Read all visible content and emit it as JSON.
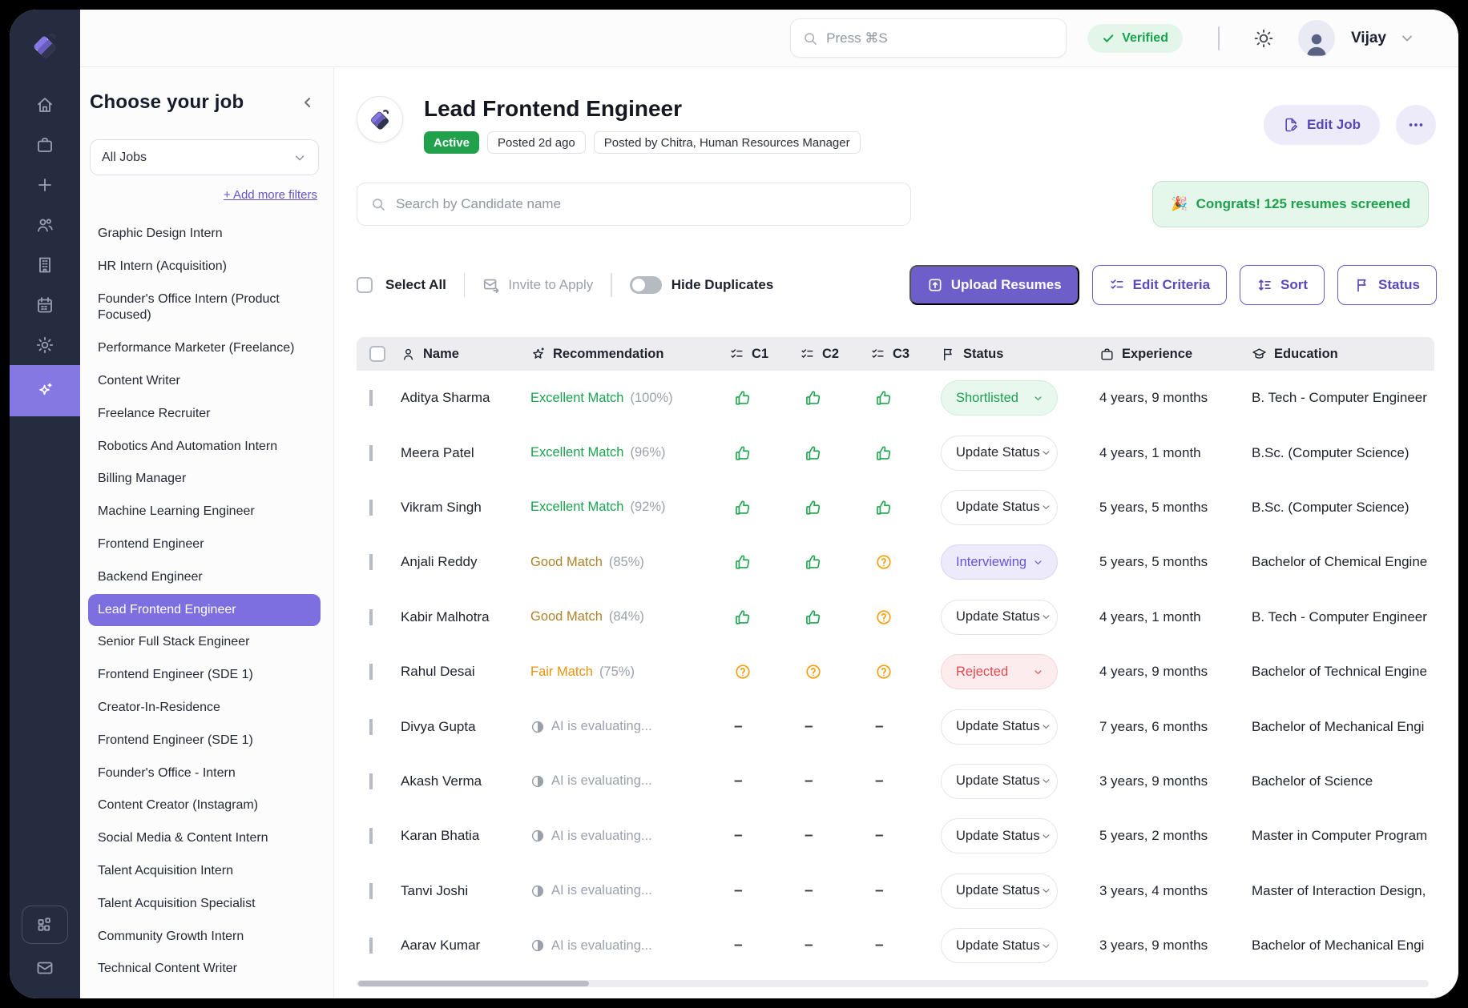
{
  "colors": {
    "accent_purple": "#6e5ec9",
    "active_rail_purple": "#8678e2",
    "selected_job_purple": "#7e6fe0",
    "success_green": "#18a24d",
    "good_amber": "#ab8428",
    "fair_orange": "#e8930c",
    "danger_red": "#e5484d",
    "info_purple": "#6455d6"
  },
  "rail": {
    "items": [
      {
        "icon": "home"
      },
      {
        "icon": "briefcase"
      },
      {
        "icon": "plus"
      },
      {
        "icon": "users"
      },
      {
        "icon": "building"
      },
      {
        "icon": "calendar"
      },
      {
        "icon": "gear"
      },
      {
        "icon": "sparkles",
        "active": true
      }
    ],
    "bottom": [
      {
        "icon": "apps",
        "framed": true
      },
      {
        "icon": "mail"
      }
    ]
  },
  "topbar": {
    "search_placeholder": "Press ⌘S",
    "verified_label": "Verified",
    "user_name": "Vijay"
  },
  "sidebar": {
    "title": "Choose your job",
    "filter_value": "All Jobs",
    "add_filters_label": "+ Add more filters",
    "selected_job": "Lead Frontend Engineer",
    "jobs": [
      "Graphic Design Intern",
      "HR Intern (Acquisition)",
      "Founder's Office Intern (Product Focused)",
      "Performance Marketer (Freelance)",
      "Content Writer",
      "Freelance Recruiter",
      "Robotics And Automation Intern",
      "Billing Manager",
      "Machine Learning Engineer",
      "Frontend Engineer",
      "Backend Engineer",
      "Lead Frontend Engineer",
      "Senior Full Stack Engineer",
      "Frontend Engineer (SDE 1)",
      "Creator-In-Residence",
      "Frontend Engineer (SDE 1)",
      "Founder's Office - Intern",
      "Content Creator (Instagram)",
      "Social Media & Content Intern",
      "Talent Acquisition Intern",
      "Talent Acquisition Specialist",
      "Community Growth Intern",
      "Technical Content Writer"
    ]
  },
  "job_header": {
    "title": "Lead Frontend Engineer",
    "status_badge": "Active",
    "posted_badge": "Posted 2d ago",
    "posted_by_badge": "Posted by Chitra, Human Resources Manager",
    "edit_job_label": "Edit Job"
  },
  "toolbar": {
    "candidate_search_placeholder": "Search by Candidate name",
    "congrats_emoji": "🎉",
    "congrats_text": "Congrats! 125 resumes screened",
    "select_all_label": "Select All",
    "invite_label": "Invite to Apply",
    "hide_duplicates_label": "Hide Duplicates",
    "upload_label": "Upload Resumes",
    "edit_criteria_label": "Edit Criteria",
    "sort_label": "Sort",
    "status_label": "Status"
  },
  "table": {
    "ai_evaluating_label": "AI is evaluating...",
    "columns": [
      {
        "icon": "user",
        "label": "Name"
      },
      {
        "icon": "star-sparkle",
        "label": "Recommendation"
      },
      {
        "icon": "checklist",
        "label": "C1"
      },
      {
        "icon": "checklist",
        "label": "C2"
      },
      {
        "icon": "checklist",
        "label": "C3"
      },
      {
        "icon": "flag",
        "label": "Status"
      },
      {
        "icon": "briefcase",
        "label": "Experience"
      },
      {
        "icon": "grad-cap",
        "label": "Education"
      }
    ],
    "rows": [
      {
        "name": "Aditya Sharma",
        "match": "Excellent Match",
        "percent": "(100%)",
        "tone": "excellent",
        "checks": [
          "thumb",
          "thumb",
          "thumb"
        ],
        "status": "Shortlisted",
        "status_variant": "success",
        "experience": "4 years, 9 months",
        "education": "B. Tech - Computer Engineer"
      },
      {
        "name": "Meera Patel",
        "match": "Excellent Match",
        "percent": "(96%)",
        "tone": "excellent",
        "checks": [
          "thumb",
          "thumb",
          "thumb"
        ],
        "status": "Update Status",
        "status_variant": "default",
        "experience": "4 years, 1 month",
        "education": "B.Sc. (Computer Science)"
      },
      {
        "name": "Vikram Singh",
        "match": "Excellent Match",
        "percent": "(92%)",
        "tone": "excellent",
        "checks": [
          "thumb",
          "thumb",
          "thumb"
        ],
        "status": "Update Status",
        "status_variant": "default",
        "experience": "5 years, 5 months",
        "education": "B.Sc. (Computer Science)"
      },
      {
        "name": "Anjali Reddy",
        "match": "Good Match",
        "percent": "(85%)",
        "tone": "good",
        "checks": [
          "thumb",
          "thumb",
          "question"
        ],
        "status": "Interviewing",
        "status_variant": "info",
        "experience": "5 years, 5 months",
        "education": "Bachelor of Chemical Engine"
      },
      {
        "name": "Kabir Malhotra",
        "match": "Good Match",
        "percent": "(84%)",
        "tone": "good",
        "checks": [
          "thumb",
          "thumb",
          "question"
        ],
        "status": "Update Status",
        "status_variant": "default",
        "experience": "4 years, 1 month",
        "education": "B. Tech - Computer Engineer"
      },
      {
        "name": "Rahul Desai",
        "match": "Fair Match",
        "percent": "(75%)",
        "tone": "fair",
        "checks": [
          "question",
          "question",
          "question"
        ],
        "status": "Rejected",
        "status_variant": "danger",
        "experience": "4 years, 9 months",
        "education": "Bachelor of Technical Engine"
      },
      {
        "name": "Divya Gupta",
        "match": "",
        "percent": "",
        "tone": "pending",
        "checks": [
          "dash",
          "dash",
          "dash"
        ],
        "status": "Update Status",
        "status_variant": "default",
        "experience": "7 years, 6 months",
        "education": "Bachelor of Mechanical Engi"
      },
      {
        "name": "Akash Verma",
        "match": "",
        "percent": "",
        "tone": "pending",
        "checks": [
          "dash",
          "dash",
          "dash"
        ],
        "status": "Update Status",
        "status_variant": "default",
        "experience": "3 years, 9 months",
        "education": "Bachelor of Science"
      },
      {
        "name": "Karan Bhatia",
        "match": "",
        "percent": "",
        "tone": "pending",
        "checks": [
          "dash",
          "dash",
          "dash"
        ],
        "status": "Update Status",
        "status_variant": "default",
        "experience": "5 years, 2 months",
        "education": "Master in Computer Program"
      },
      {
        "name": "Tanvi Joshi",
        "match": "",
        "percent": "",
        "tone": "pending",
        "checks": [
          "dash",
          "dash",
          "dash"
        ],
        "status": "Update Status",
        "status_variant": "default",
        "experience": "3 years, 4 months",
        "education": "Master of Interaction Design,"
      },
      {
        "name": "Aarav Kumar",
        "match": "",
        "percent": "",
        "tone": "pending",
        "checks": [
          "dash",
          "dash",
          "dash"
        ],
        "status": "Update Status",
        "status_variant": "default",
        "experience": "3 years, 9 months",
        "education": "Bachelor of Mechanical Engi"
      }
    ]
  }
}
